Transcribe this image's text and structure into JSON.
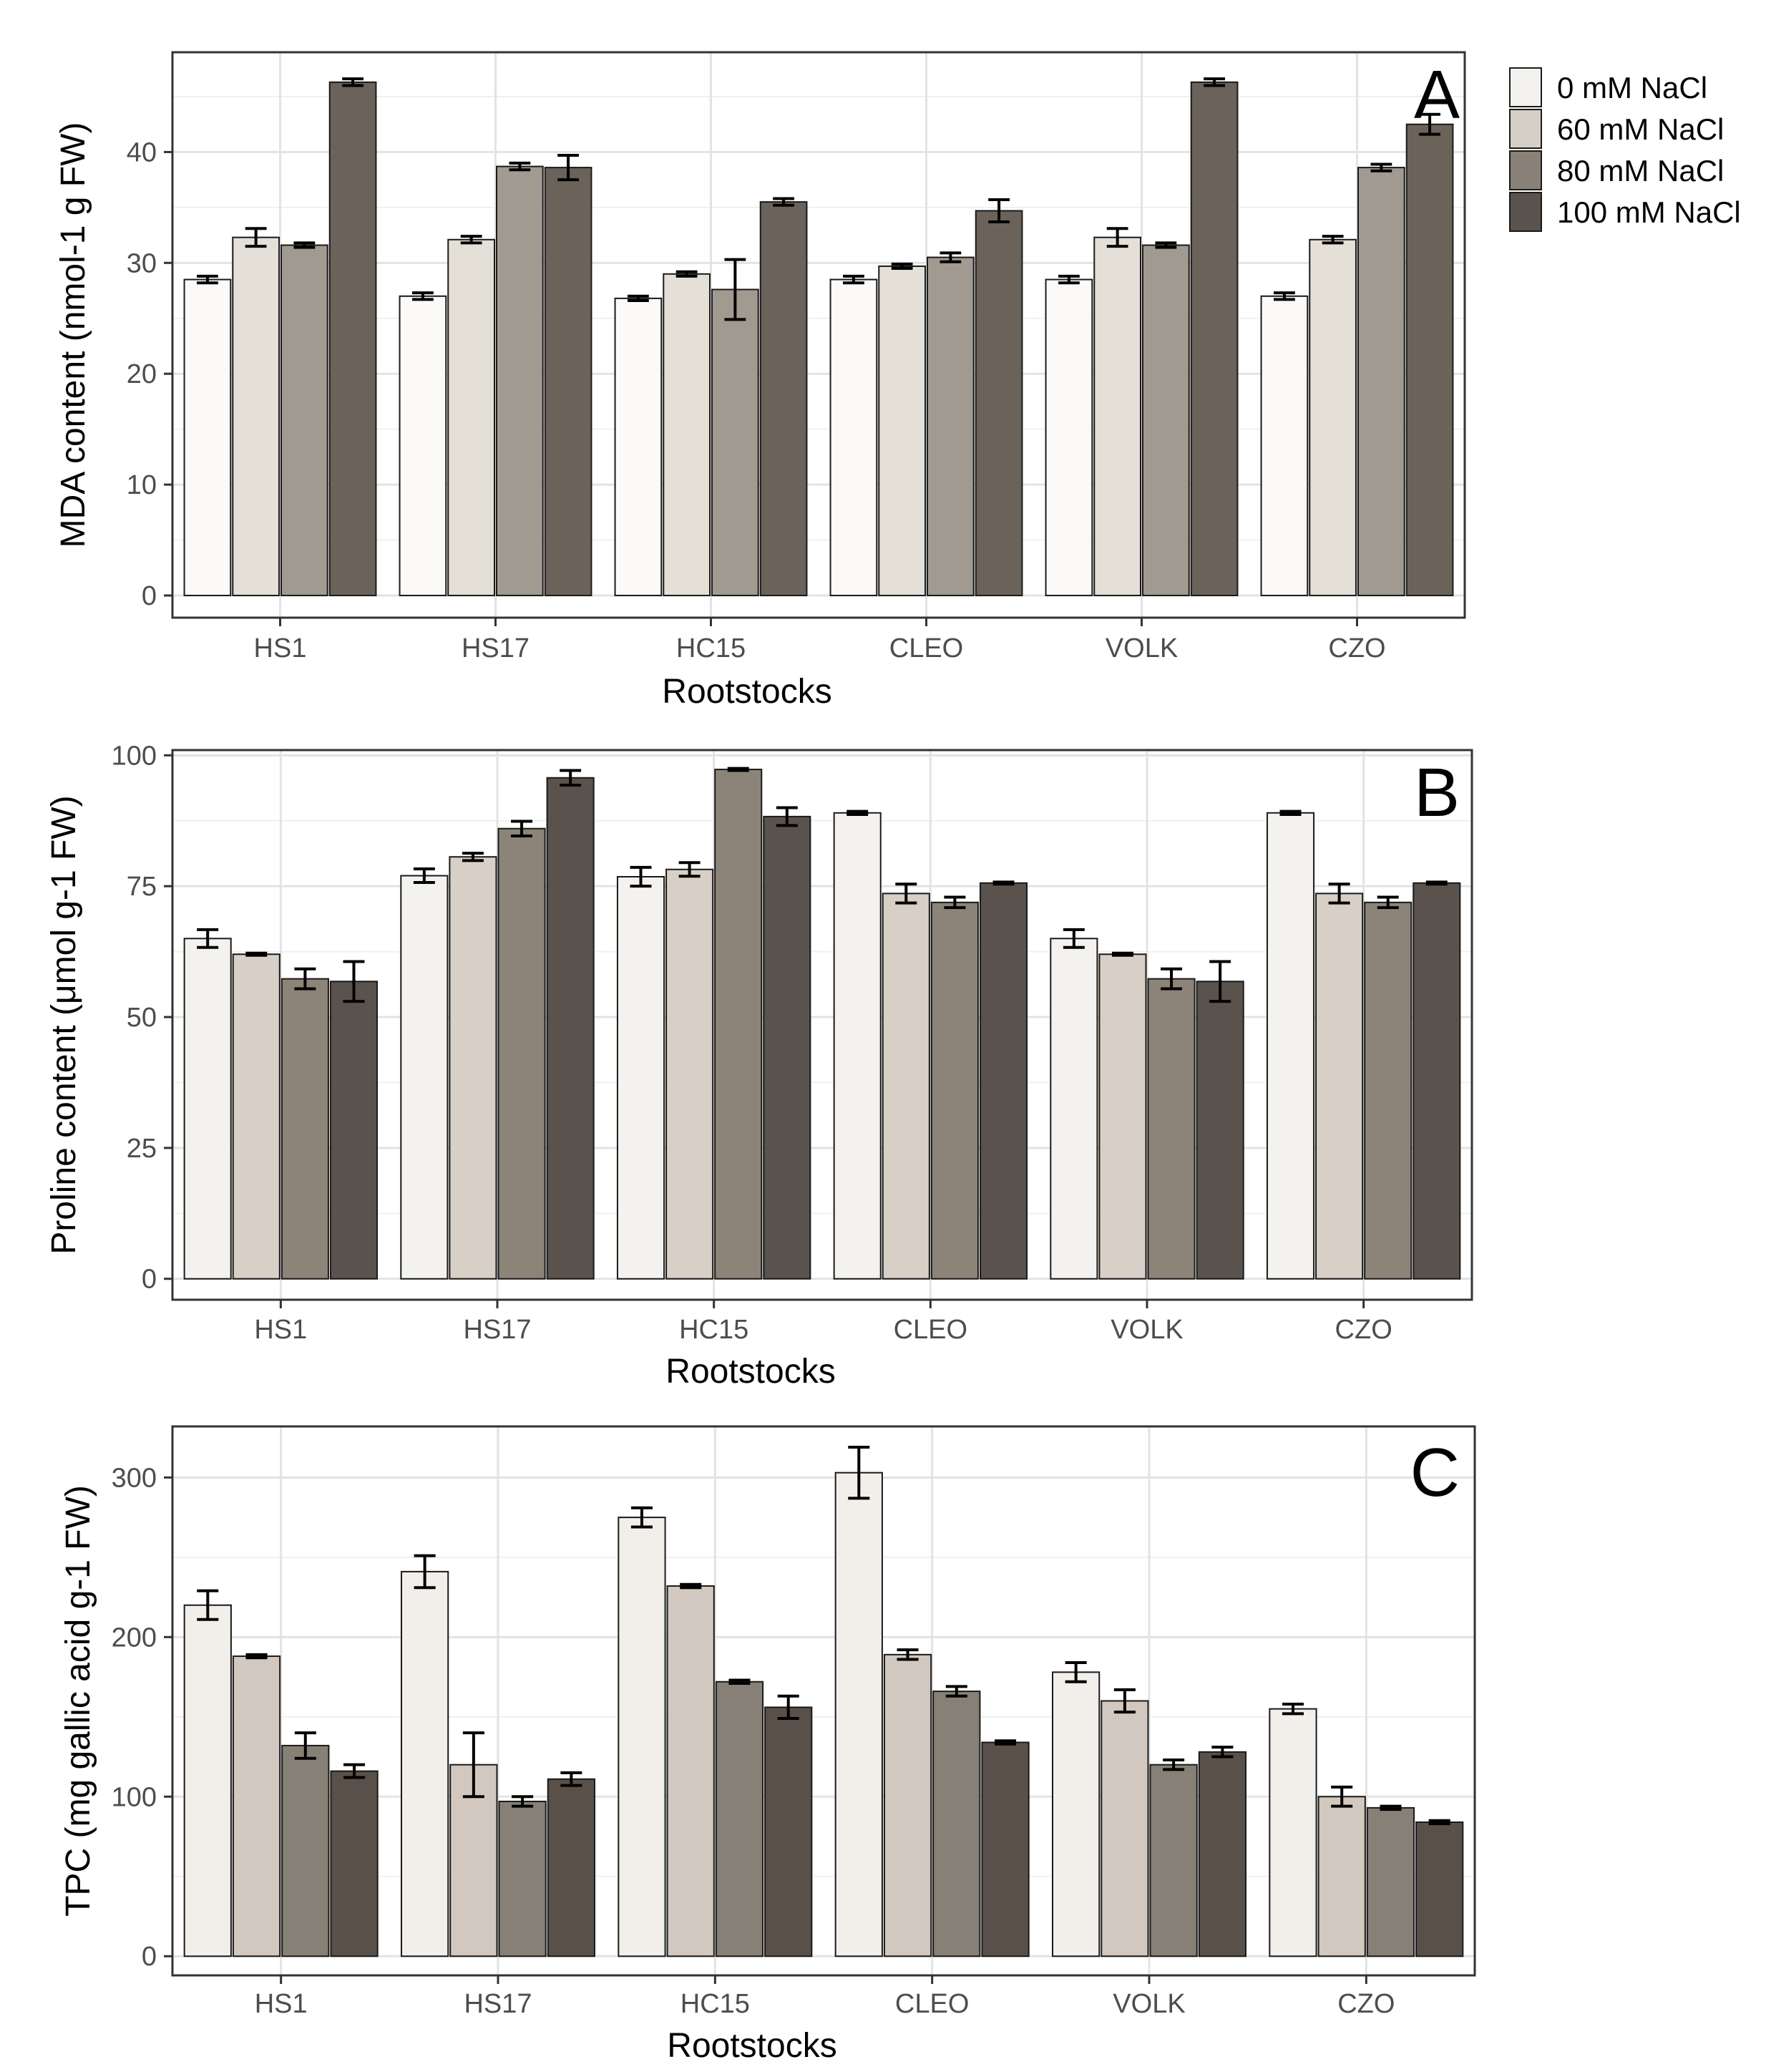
{
  "chart_data": [
    {
      "type": "bar",
      "panel_label": "A",
      "xlabel": "Rootstocks",
      "ylabel": "MDA content (nmol-1 g FW)",
      "ylim": [
        -2,
        49
      ],
      "yticks": [
        0,
        10,
        20,
        30,
        40
      ],
      "grid": true,
      "categories": [
        "HS1",
        "HS17",
        "HC15",
        "CLEO",
        "VOLK",
        "CZO"
      ],
      "series": [
        {
          "name": "0 mM NaCl",
          "values": [
            28.5,
            27.0,
            26.8,
            28.5,
            28.5,
            27.0
          ],
          "errors": [
            0.3,
            0.3,
            0.2,
            0.3,
            0.3,
            0.3
          ]
        },
        {
          "name": "60 mM NaCl",
          "values": [
            32.3,
            32.1,
            29.0,
            29.7,
            32.3,
            32.1
          ],
          "errors": [
            0.8,
            0.3,
            0.2,
            0.2,
            0.8,
            0.3
          ]
        },
        {
          "name": "80 mM NaCl",
          "values": [
            31.6,
            38.7,
            27.6,
            30.5,
            31.6,
            38.6
          ],
          "errors": [
            0.2,
            0.3,
            2.7,
            0.4,
            0.2,
            0.3
          ]
        },
        {
          "name": "100 mM NaCl",
          "values": [
            46.3,
            38.6,
            35.5,
            34.7,
            46.3,
            42.5
          ],
          "errors": [
            0.3,
            1.1,
            0.3,
            1.0,
            0.3,
            0.9
          ]
        }
      ]
    },
    {
      "type": "bar",
      "panel_label": "B",
      "xlabel": "Rootstocks",
      "ylabel": "Proline content (μmol g-1 FW)",
      "ylim": [
        -4,
        101
      ],
      "yticks": [
        0,
        25,
        50,
        75,
        100
      ],
      "grid": true,
      "categories": [
        "HS1",
        "HS17",
        "HC15",
        "CLEO",
        "VOLK",
        "CZO"
      ],
      "series": [
        {
          "name": "0 mM NaCl",
          "values": [
            65.0,
            77.0,
            76.8,
            89.0,
            65.0,
            89.0
          ],
          "errors": [
            1.7,
            1.3,
            1.8,
            0.3,
            1.7,
            0.3
          ]
        },
        {
          "name": "60 mM NaCl",
          "values": [
            62.0,
            80.6,
            78.2,
            73.6,
            62.0,
            73.6
          ],
          "errors": [
            0.2,
            0.7,
            1.3,
            1.8,
            0.2,
            1.8
          ]
        },
        {
          "name": "80 mM NaCl",
          "values": [
            57.3,
            86.0,
            97.3,
            71.9,
            57.3,
            71.9
          ],
          "errors": [
            1.9,
            1.4,
            0.2,
            1.0,
            1.9,
            1.0
          ]
        },
        {
          "name": "100 mM NaCl",
          "values": [
            56.8,
            95.7,
            88.3,
            75.6,
            56.8,
            75.6
          ],
          "errors": [
            3.8,
            1.4,
            1.7,
            0.2,
            3.8,
            0.2
          ]
        }
      ]
    },
    {
      "type": "bar",
      "panel_label": "C",
      "xlabel": "Rootstocks",
      "ylabel": "TPC (mg gallic acid g-1 FW)",
      "ylim": [
        -12,
        332
      ],
      "yticks": [
        0,
        100,
        200,
        300
      ],
      "grid": true,
      "categories": [
        "HS1",
        "HS17",
        "HC15",
        "CLEO",
        "VOLK",
        "CZO"
      ],
      "series": [
        {
          "name": "0 mM NaCl",
          "values": [
            220,
            241,
            275,
            303,
            178,
            155
          ],
          "errors": [
            9,
            10,
            6,
            16,
            6,
            3
          ]
        },
        {
          "name": "60 mM NaCl",
          "values": [
            188,
            120,
            232,
            189,
            160,
            100
          ],
          "errors": [
            1,
            20,
            1,
            3,
            7,
            6
          ]
        },
        {
          "name": "80 mM NaCl",
          "values": [
            132,
            97,
            172,
            166,
            120,
            93
          ],
          "errors": [
            8,
            3,
            1,
            3,
            3,
            1
          ]
        },
        {
          "name": "100 mM NaCl",
          "values": [
            116,
            111,
            156,
            134,
            128,
            84
          ],
          "errors": [
            4,
            4,
            7,
            1,
            3,
            1
          ]
        }
      ]
    }
  ],
  "legend": {
    "position": "top-right",
    "items": [
      {
        "label": "0 mM NaCl",
        "color": "#f4f2ef"
      },
      {
        "label": "60 mM NaCl",
        "color": "#d6cfc7"
      },
      {
        "label": "80 mM NaCl",
        "color": "#898177"
      },
      {
        "label": "100 mM NaCl",
        "color": "#5a524d"
      }
    ]
  },
  "panel_colors": [
    [
      "#fbfaf8",
      "#e4e0d8",
      "#a19a91",
      "#6b625a"
    ],
    [
      "#f4f2ee",
      "#d8cfc6",
      "#8c8479",
      "#5a524c"
    ],
    [
      "#f2eee9",
      "#d2c8bf",
      "#878076",
      "#595049"
    ]
  ]
}
